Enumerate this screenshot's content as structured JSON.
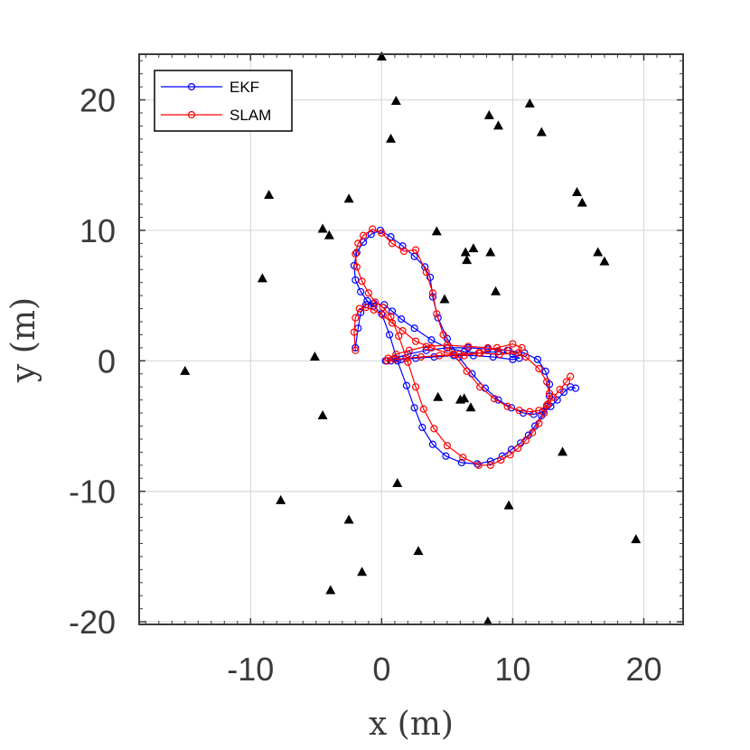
{
  "chart_data": {
    "type": "line",
    "title": "",
    "xlabel": "x (m)",
    "ylabel": "y (m)",
    "xlim": [
      -18.5,
      23
    ],
    "ylim": [
      -20.2,
      23.5
    ],
    "xticks": [
      -10,
      0,
      10,
      20
    ],
    "yticks": [
      -20,
      -10,
      0,
      10,
      20
    ],
    "xtick_labels": [
      "-10",
      "0",
      "10",
      "20"
    ],
    "ytick_labels": [
      "-20",
      "-10",
      "0",
      "10",
      "20"
    ],
    "grid": true,
    "legend_position": "top-left",
    "colors": {
      "EKF": "#0000ff",
      "SLAM": "#ff0000",
      "landmarks": "#000000",
      "grid": "#d9d9d9",
      "axis": "#3a3a3a"
    },
    "series": [
      {
        "name": "EKF",
        "x": [
          -2.0,
          -1.8,
          -1.6,
          -1.2,
          -0.6,
          0.2,
          0.8,
          1.5,
          2.5,
          3.8,
          5.0,
          6.3,
          7.5,
          8.9,
          10.0,
          10.5,
          10.0,
          8.5,
          7.0,
          5.5,
          4.0,
          2.6,
          1.5,
          0.7,
          0.3,
          0.4,
          1.0,
          2.0,
          3.4,
          5.0,
          6.6,
          8.1,
          9.6,
          10.9,
          11.9,
          12.5,
          12.8,
          12.8,
          12.6,
          12.2,
          11.7,
          11.2,
          10.6,
          9.9,
          9.2,
          8.3,
          7.3,
          6.1,
          4.9,
          3.9,
          3.1,
          2.5,
          1.9,
          1.2,
          0.6,
          0.0,
          -0.6,
          -1.1,
          -1.6,
          -2.0,
          -2.1,
          -1.9,
          -1.4,
          -0.8,
          -0.1,
          0.7,
          1.6,
          2.5,
          3.3,
          3.7,
          3.9,
          4.3,
          5.0,
          5.9,
          6.9,
          7.9,
          8.9,
          9.9,
          10.8,
          11.6,
          12.3,
          12.9,
          13.4,
          13.9,
          14.4,
          14.8
        ],
        "y": [
          1.0,
          2.5,
          3.7,
          4.3,
          4.4,
          4.3,
          3.8,
          3.2,
          2.5,
          1.6,
          1.0,
          0.7,
          0.6,
          0.7,
          0.5,
          0.2,
          0.1,
          0.3,
          0.4,
          0.4,
          0.3,
          0.2,
          0.1,
          0.0,
          0.0,
          0.0,
          0.2,
          0.5,
          0.8,
          1.0,
          1.0,
          0.9,
          0.8,
          0.6,
          0.1,
          -0.8,
          -1.8,
          -2.7,
          -3.5,
          -4.2,
          -5.0,
          -5.7,
          -6.3,
          -6.8,
          -7.3,
          -7.7,
          -7.9,
          -7.8,
          -7.3,
          -6.4,
          -5.1,
          -3.6,
          -1.9,
          0.0,
          2.0,
          3.6,
          4.2,
          4.6,
          5.3,
          6.2,
          7.3,
          8.3,
          9.1,
          9.7,
          10.0,
          9.5,
          8.8,
          8.0,
          7.2,
          6.4,
          4.9,
          3.3,
          1.7,
          0.3,
          -1.0,
          -2.1,
          -3.0,
          -3.6,
          -4.0,
          -4.1,
          -3.9,
          -3.5,
          -3.0,
          -2.4,
          -2.0,
          -2.1
        ]
      },
      {
        "name": "SLAM",
        "x": [
          -2.0,
          -2.1,
          -2.0,
          -1.7,
          -1.2,
          -0.6,
          0.1,
          0.8,
          1.6,
          2.6,
          3.8,
          5.0,
          6.3,
          7.5,
          8.8,
          10.0,
          10.7,
          10.4,
          9.0,
          7.4,
          5.9,
          4.4,
          3.0,
          1.9,
          1.0,
          0.4,
          0.5,
          1.1,
          2.1,
          3.4,
          5.0,
          6.6,
          8.1,
          9.7,
          11.0,
          12.0,
          12.6,
          12.8,
          12.7,
          12.4,
          12.0,
          11.5,
          11.0,
          10.4,
          9.8,
          9.1,
          8.3,
          7.4,
          6.2,
          5.0,
          4.0,
          3.2,
          2.6,
          2.0,
          1.3,
          0.7,
          0.1,
          -0.5,
          -1.0,
          -1.5,
          -1.9,
          -2.0,
          -1.8,
          -1.4,
          -0.7,
          0.0,
          0.8,
          1.7,
          2.6,
          3.4,
          3.9,
          4.2,
          4.7,
          5.5,
          6.5,
          7.5,
          8.6,
          9.6,
          10.5,
          11.3,
          12.0,
          12.6,
          13.1,
          13.6,
          14.1,
          14.4
        ],
        "y": [
          0.8,
          2.2,
          3.3,
          4.0,
          4.1,
          3.9,
          3.5,
          2.9,
          2.3,
          1.5,
          1.0,
          0.6,
          0.4,
          0.6,
          1.0,
          1.3,
          1.0,
          0.6,
          0.5,
          0.6,
          0.5,
          0.4,
          0.3,
          0.2,
          0.1,
          0.0,
          0.2,
          0.5,
          0.8,
          1.1,
          1.2,
          1.1,
          1.0,
          0.8,
          0.3,
          -0.6,
          -1.6,
          -2.5,
          -3.3,
          -4.0,
          -4.8,
          -5.5,
          -6.1,
          -6.7,
          -7.2,
          -7.6,
          -8.0,
          -8.0,
          -7.4,
          -6.5,
          -5.2,
          -3.7,
          -2.0,
          -0.1,
          1.9,
          3.4,
          4.1,
          4.5,
          5.2,
          6.1,
          7.2,
          8.2,
          9.0,
          9.6,
          10.1,
          9.8,
          9.0,
          8.4,
          8.5,
          6.8,
          5.2,
          3.6,
          2.0,
          0.5,
          -0.8,
          -2.0,
          -2.9,
          -3.5,
          -3.8,
          -3.9,
          -3.8,
          -3.4,
          -2.8,
          -2.2,
          -1.6,
          -1.2
        ]
      }
    ],
    "landmarks": {
      "x": [
        0.0,
        1.1,
        0.7,
        -8.6,
        -2.5,
        -4.5,
        -4.0,
        -9.1,
        -5.1,
        -4.5,
        -15.0,
        -7.7,
        -2.5,
        -1.5,
        -3.9,
        1.2,
        2.8,
        8.1,
        9.7,
        13.8,
        19.4,
        4.2,
        8.2,
        8.9,
        6.4,
        7.0,
        6.5,
        8.3,
        4.8,
        8.7,
        4.3,
        6.0,
        6.8,
        6.3,
        11.3,
        12.2,
        14.9,
        15.3,
        16.5,
        17.0
      ],
      "y": [
        23.3,
        19.9,
        17.0,
        12.7,
        12.4,
        10.1,
        9.6,
        6.3,
        0.3,
        -4.2,
        -0.8,
        -10.7,
        -12.2,
        -16.2,
        -17.6,
        -9.4,
        -14.6,
        -20.0,
        -11.1,
        -7.0,
        -13.7,
        9.9,
        18.8,
        18.0,
        8.3,
        8.6,
        7.7,
        8.3,
        4.7,
        5.3,
        -2.8,
        -3.0,
        -3.6,
        -2.9,
        19.7,
        17.5,
        12.9,
        12.1,
        8.3,
        7.6
      ]
    }
  },
  "legend": {
    "items": [
      {
        "label": "EKF",
        "color": "#0000ff"
      },
      {
        "label": "SLAM",
        "color": "#ff0000"
      }
    ]
  }
}
